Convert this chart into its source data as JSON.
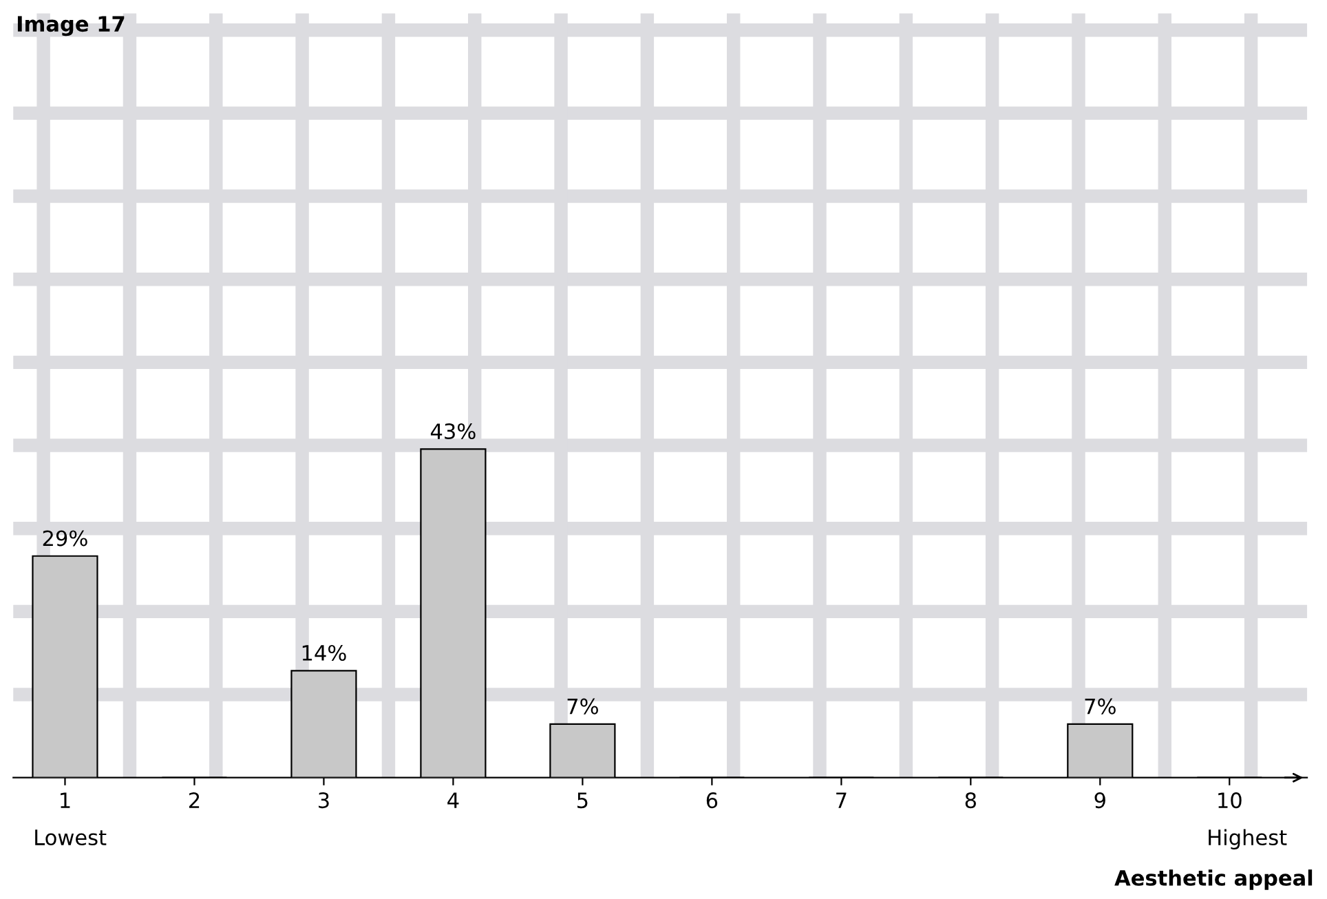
{
  "chart_data": {
    "type": "bar",
    "title": "Image 17",
    "xlabel": "Aesthetic appeal",
    "categories": [
      "1",
      "2",
      "3",
      "4",
      "5",
      "6",
      "7",
      "8",
      "9",
      "10"
    ],
    "values": [
      29,
      0,
      14,
      43,
      7,
      0,
      0,
      0,
      7,
      0
    ],
    "value_labels": [
      "29%",
      null,
      "14%",
      "43%",
      "7%",
      null,
      null,
      null,
      "7%",
      null
    ],
    "color": "#c8c8c8",
    "ylim": [
      0,
      100
    ],
    "annotations": [
      "Lowest",
      "Highest"
    ],
    "grid": true
  }
}
